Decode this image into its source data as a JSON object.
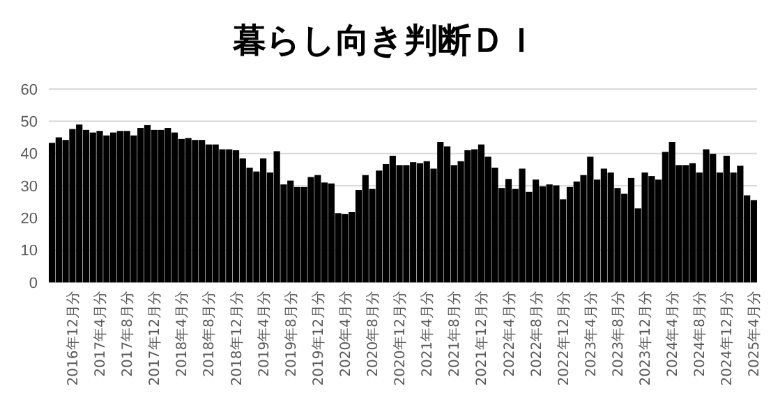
{
  "chart_data": {
    "type": "bar",
    "title": "暮らし向き判断ＤＩ",
    "categories": [
      null,
      null,
      null,
      "2016年12月分",
      null,
      null,
      null,
      "2017年4月分",
      null,
      null,
      null,
      "2017年8月分",
      null,
      null,
      null,
      "2017年12月分",
      null,
      null,
      null,
      "2018年4月分",
      null,
      null,
      null,
      "2018年8月分",
      null,
      null,
      null,
      "2018年12月分",
      null,
      null,
      null,
      "2019年4月分",
      null,
      null,
      null,
      "2019年8月分",
      null,
      null,
      null,
      "2019年12月分",
      null,
      null,
      null,
      "2020年4月分",
      null,
      null,
      null,
      "2020年8月分",
      null,
      null,
      null,
      "2020年12月分",
      null,
      null,
      null,
      "2021年4月分",
      null,
      null,
      null,
      "2021年8月分",
      null,
      null,
      null,
      "2021年12月分",
      null,
      null,
      null,
      "2022年4月分",
      null,
      null,
      null,
      "2022年8月分",
      null,
      null,
      null,
      "2022年12月分",
      null,
      null,
      null,
      "2023年4月分",
      null,
      null,
      null,
      "2023年8月分",
      null,
      null,
      null,
      "2023年12月分",
      null,
      null,
      null,
      "2024年4月分",
      null,
      null,
      null,
      "2024年8月分",
      null,
      null,
      null,
      "2024年12月分",
      null,
      null,
      null,
      "2025年4月分"
    ],
    "values": [
      43.3,
      45,
      44.2,
      47.6,
      49,
      47.3,
      46.5,
      47,
      45.6,
      46.5,
      47,
      47,
      45.6,
      47.9,
      48.8,
      47.3,
      47.3,
      47.9,
      46.5,
      44.5,
      44.8,
      44.2,
      44.2,
      42.8,
      42.8,
      41.3,
      41.3,
      41,
      38.5,
      35.6,
      34.4,
      38.5,
      34.1,
      40.7,
      30.4,
      31.6,
      29.6,
      29.6,
      32.7,
      33.3,
      31,
      30.7,
      21.5,
      21.2,
      21.8,
      28.7,
      33.3,
      29,
      34.7,
      36.7,
      39.3,
      36.4,
      36.4,
      37.3,
      37,
      37.6,
      35.3,
      43.6,
      42.2,
      36.4,
      37.6,
      41,
      41.3,
      42.8,
      39,
      35.6,
      29.3,
      32.1,
      29,
      35.3,
      28.1,
      31.9,
      29.8,
      30.4,
      30.1,
      25.8,
      29.6,
      31.3,
      33.3,
      39,
      31.9,
      35.3,
      34.1,
      29.3,
      27.5,
      32.4,
      23,
      34.1,
      33,
      31.9,
      40.5,
      43.6,
      36.4,
      36.4,
      37,
      34.1,
      41.3,
      39.9,
      34.1,
      39.3,
      34.1,
      36.2,
      27,
      25.5
    ],
    "color": "#000000",
    "ylim": [
      0,
      60
    ],
    "yticks": [
      0,
      10,
      20,
      30,
      40,
      50,
      60
    ],
    "grid": "y"
  }
}
